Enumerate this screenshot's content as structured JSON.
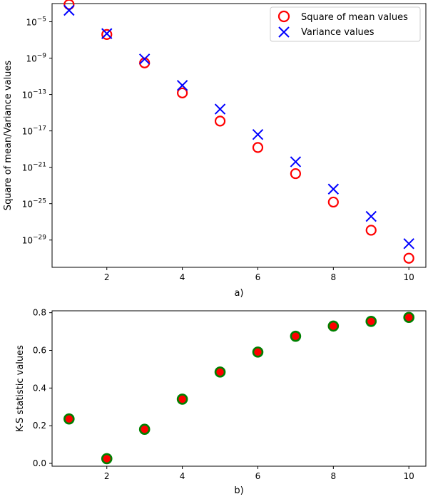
{
  "chart_data": [
    {
      "type": "scatter",
      "panel_label": "a)",
      "xlabel": "",
      "ylabel": "Square of mean/Variance values",
      "yscale": "log",
      "xlim": [
        0.55,
        10.45
      ],
      "ylim": [
        1e-32,
        0.001
      ],
      "x_ticks": [
        2,
        4,
        6,
        8,
        10
      ],
      "y_ticks": [
        {
          "value": 1e-05,
          "base": "10",
          "exp": "−5"
        },
        {
          "value": 1e-09,
          "base": "10",
          "exp": "−9"
        },
        {
          "value": 1e-13,
          "base": "10",
          "exp": "−13"
        },
        {
          "value": 1e-17,
          "base": "10",
          "exp": "−17"
        },
        {
          "value": 1e-21,
          "base": "10",
          "exp": "−21"
        },
        {
          "value": 1e-25,
          "base": "10",
          "exp": "−25"
        },
        {
          "value": 1e-29,
          "base": "10",
          "exp": "−29"
        }
      ],
      "grid": false,
      "legend_position": "top-right",
      "x": [
        1,
        2,
        3,
        4,
        5,
        6,
        7,
        8,
        9,
        10
      ],
      "series": [
        {
          "name": "Square of mean values",
          "marker": "open-circle",
          "color": "#ff0000",
          "values": [
            0.0008,
            4e-07,
            3e-10,
            1.5e-13,
            1.2e-16,
            1.5e-19,
            2e-22,
            1.5e-25,
            1.2e-28,
            1e-31
          ]
        },
        {
          "name": "Variance values",
          "marker": "x",
          "color": "#0000ff",
          "values": [
            0.00018,
            5e-07,
            8e-10,
            1e-12,
            2.5e-15,
            4e-18,
            4e-21,
            4e-24,
            4e-27,
            4e-30
          ]
        }
      ]
    },
    {
      "type": "scatter",
      "panel_label": "b)",
      "xlabel": "",
      "ylabel": "K-S statistic values",
      "xlim": [
        0.55,
        10.45
      ],
      "ylim": [
        -0.015,
        0.81
      ],
      "x_ticks": [
        2,
        4,
        6,
        8,
        10
      ],
      "y_ticks": [
        "0.0",
        "0.2",
        "0.4",
        "0.6",
        "0.8"
      ],
      "grid": false,
      "x": [
        1,
        2,
        3,
        4,
        5,
        6,
        7,
        8,
        9,
        10
      ],
      "series": [
        {
          "name": "",
          "marker": "filled-circle",
          "face_color": "#ff0000",
          "edge_color": "#008000",
          "values": [
            0.236,
            0.025,
            0.181,
            0.341,
            0.485,
            0.591,
            0.675,
            0.729,
            0.754,
            0.775
          ]
        }
      ]
    }
  ]
}
